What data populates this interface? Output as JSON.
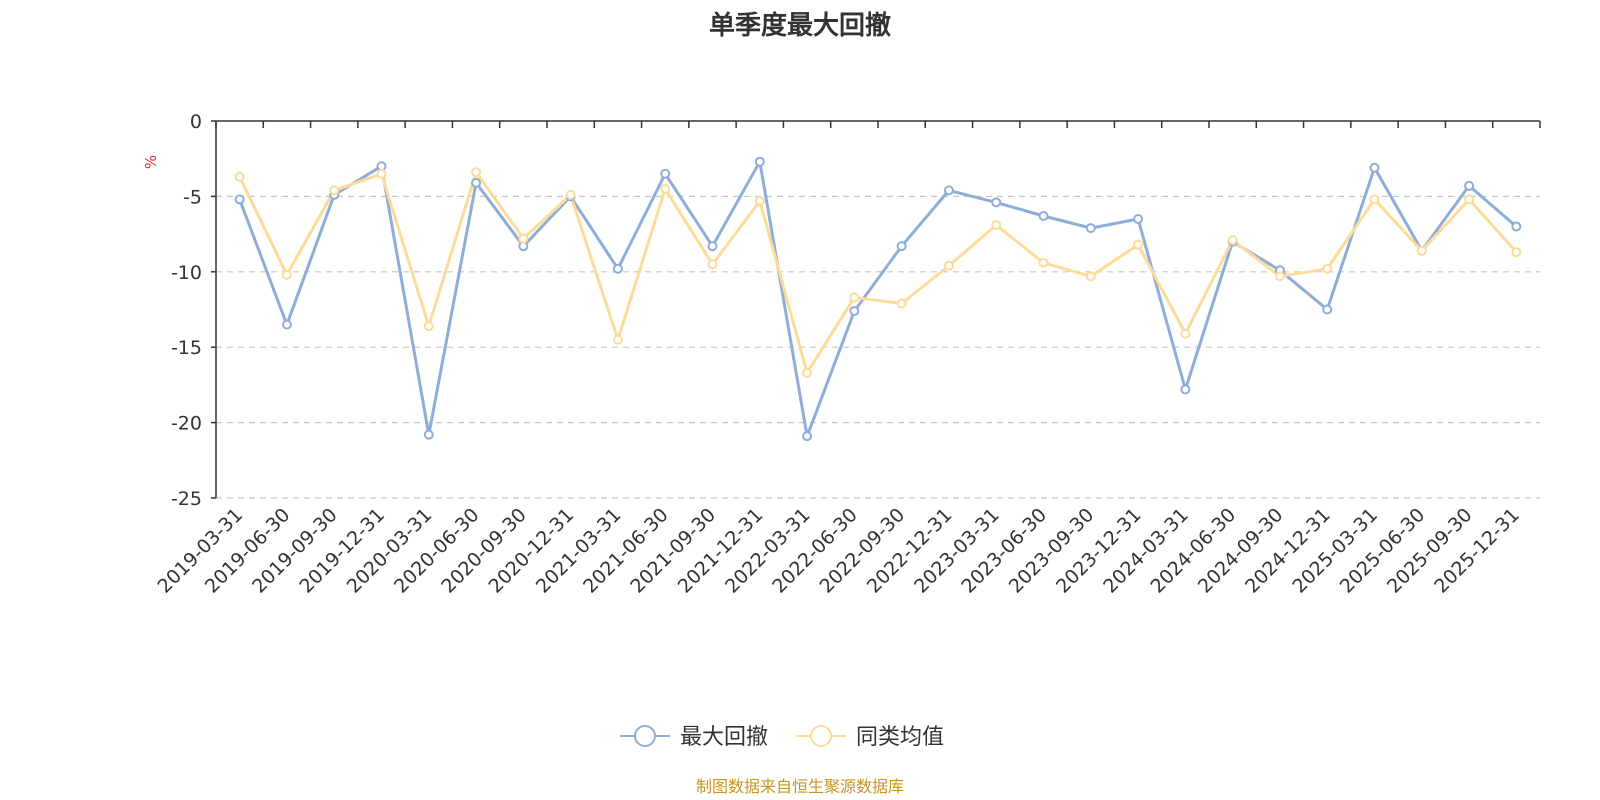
{
  "source_note": "制图数据来自恒生聚源数据库",
  "colors": {
    "series_1": "#8fadd9",
    "series_2": "#fddc9a",
    "unit": "#e03030",
    "source": "#c8961e",
    "grid": "#c8c8c8",
    "axis": "#333333"
  },
  "chart_data": {
    "type": "line",
    "title": "单季度最大回撤",
    "ylabel": "%",
    "xlabel": "",
    "ylim": [
      -25,
      0
    ],
    "yticks": [
      "0",
      "-5",
      "-10",
      "-15",
      "-20",
      "-25"
    ],
    "ytick_values": [
      0,
      -5,
      -10,
      -15,
      -20,
      -25
    ],
    "grid": true,
    "legend_position": "bottom-center",
    "categories": [
      "2019-03-31",
      "2019-06-30",
      "2019-09-30",
      "2019-12-31",
      "2020-03-31",
      "2020-06-30",
      "2020-09-30",
      "2020-12-31",
      "2021-03-31",
      "2021-06-30",
      "2021-09-30",
      "2021-12-31",
      "2022-03-31",
      "2022-06-30",
      "2022-09-30",
      "2022-12-31",
      "2023-03-31",
      "2023-06-30",
      "2023-09-30",
      "2023-12-31",
      "2024-03-31",
      "2024-06-30",
      "2024-09-30",
      "2024-12-31",
      "2025-03-31",
      "2025-06-30",
      "2025-09-30",
      "2025-12-31"
    ],
    "series": [
      {
        "name": "最大回撤",
        "values": [
          -5.2,
          -13.5,
          -4.9,
          -3.0,
          -20.8,
          -4.1,
          -8.3,
          -5.0,
          -9.8,
          -3.5,
          -8.3,
          -2.7,
          -20.9,
          -12.6,
          -8.3,
          -4.6,
          -5.4,
          -6.3,
          -7.1,
          -6.5,
          -17.8,
          -8.0,
          -9.9,
          -12.5,
          -3.1,
          -8.6,
          -4.3,
          -7.0
        ]
      },
      {
        "name": "同类均值",
        "values": [
          -3.7,
          -10.2,
          -4.6,
          -3.5,
          -13.6,
          -3.4,
          -7.8,
          -4.9,
          -14.5,
          -4.5,
          -9.5,
          -5.3,
          -16.7,
          -11.7,
          -12.1,
          -9.6,
          -6.9,
          -9.4,
          -10.3,
          -8.2,
          -14.1,
          -7.9,
          -10.3,
          -9.8,
          -5.2,
          -8.6,
          -5.2,
          -8.7
        ]
      }
    ]
  }
}
